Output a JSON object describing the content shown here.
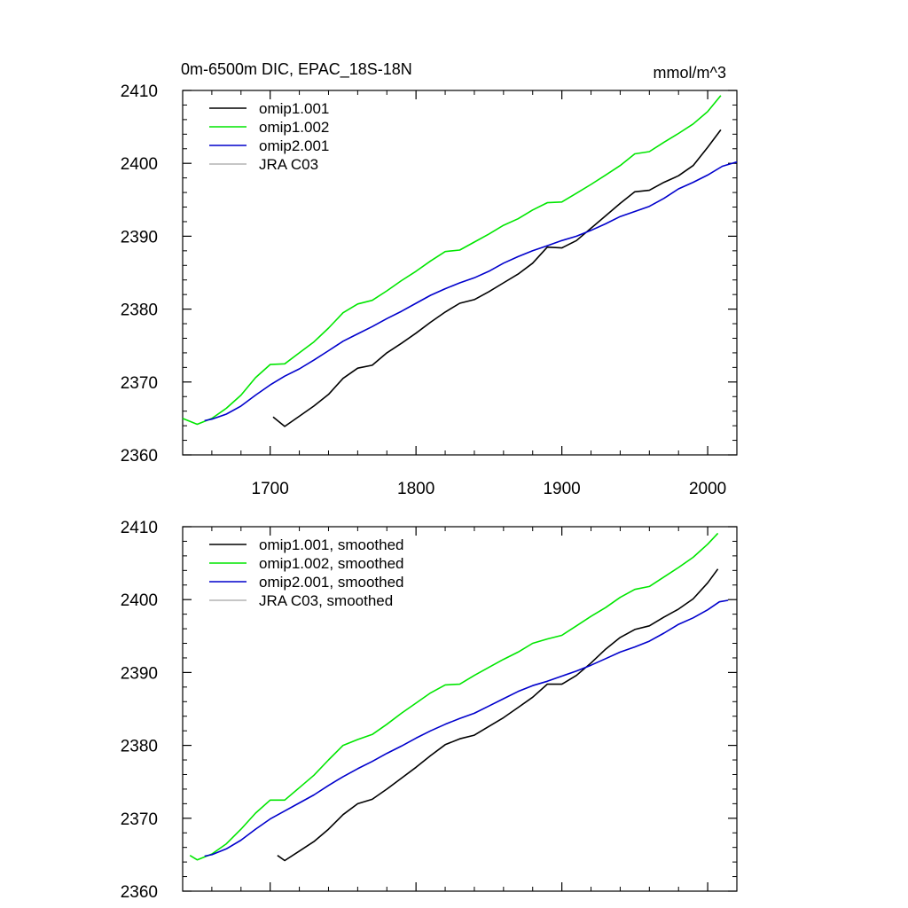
{
  "colors": {
    "omip1_001": "#000000",
    "omip1_002": "#00e600",
    "omip2_001": "#0000cc",
    "jra_c03": "#b3b3b3",
    "frame": "#000000"
  },
  "chart_data": [
    {
      "type": "line",
      "title": "0m-6500m DIC, EPAC_18S-18N",
      "units": "mmol/m^3",
      "xlim": [
        1640,
        2020
      ],
      "ylim": [
        2360,
        2410
      ],
      "x_ticks": [
        1700,
        1800,
        1900,
        2000
      ],
      "x_tick_labels": [
        "1700",
        "1800",
        "1900",
        "2000"
      ],
      "y_ticks": [
        2360,
        2370,
        2380,
        2390,
        2400,
        2410
      ],
      "y_tick_labels": [
        "2360",
        "2370",
        "2380",
        "2390",
        "2400",
        "2410"
      ],
      "grid": false,
      "legend_position": "top-left",
      "series": [
        {
          "name": "omip1.001",
          "color_key": "omip1_001",
          "x": [
            1702,
            1710,
            1720,
            1730,
            1740,
            1750,
            1760,
            1770,
            1780,
            1790,
            1800,
            1810,
            1820,
            1830,
            1840,
            1850,
            1860,
            1870,
            1880,
            1890,
            1900,
            1910,
            1920,
            1930,
            1940,
            1950,
            1960,
            1970,
            1980,
            1990,
            2000,
            2009
          ],
          "y": [
            2365.2,
            2363.9,
            2365.3,
            2366.7,
            2368.3,
            2370.5,
            2371.9,
            2372.3,
            2374.0,
            2375.3,
            2376.7,
            2378.2,
            2379.6,
            2380.8,
            2381.3,
            2382.4,
            2383.6,
            2384.8,
            2386.3,
            2388.5,
            2388.4,
            2389.4,
            2391.1,
            2392.8,
            2394.5,
            2396.1,
            2396.3,
            2397.4,
            2398.3,
            2399.7,
            2402.2,
            2404.6
          ]
        },
        {
          "name": "omip1.002",
          "color_key": "omip1_002",
          "x": [
            1640,
            1650,
            1660,
            1670,
            1680,
            1690,
            1700,
            1710,
            1720,
            1730,
            1740,
            1750,
            1760,
            1770,
            1780,
            1790,
            1800,
            1810,
            1820,
            1830,
            1840,
            1850,
            1860,
            1870,
            1880,
            1890,
            1900,
            1910,
            1920,
            1930,
            1940,
            1950,
            1960,
            1970,
            1980,
            1990,
            2000,
            2009
          ],
          "y": [
            2365.0,
            2364.2,
            2365.0,
            2366.4,
            2368.2,
            2370.6,
            2372.4,
            2372.5,
            2374.0,
            2375.5,
            2377.4,
            2379.5,
            2380.7,
            2381.2,
            2382.5,
            2383.9,
            2385.2,
            2386.6,
            2387.9,
            2388.1,
            2389.2,
            2390.3,
            2391.5,
            2392.4,
            2393.6,
            2394.6,
            2394.7,
            2395.9,
            2397.1,
            2398.4,
            2399.7,
            2401.3,
            2401.6,
            2402.9,
            2404.1,
            2405.4,
            2407.1,
            2409.3
          ]
        },
        {
          "name": "omip2.001",
          "color_key": "omip2_001",
          "x": [
            1655,
            1660,
            1670,
            1680,
            1690,
            1700,
            1710,
            1720,
            1730,
            1740,
            1750,
            1760,
            1770,
            1780,
            1790,
            1800,
            1810,
            1820,
            1830,
            1840,
            1850,
            1860,
            1870,
            1880,
            1890,
            1900,
            1910,
            1920,
            1930,
            1940,
            1950,
            1960,
            1970,
            1980,
            1990,
            2000,
            2010,
            2020
          ],
          "y": [
            2364.7,
            2364.9,
            2365.6,
            2366.7,
            2368.2,
            2369.6,
            2370.8,
            2371.8,
            2373.0,
            2374.3,
            2375.6,
            2376.6,
            2377.6,
            2378.7,
            2379.7,
            2380.8,
            2381.9,
            2382.8,
            2383.6,
            2384.3,
            2385.2,
            2386.3,
            2387.2,
            2388.0,
            2388.7,
            2389.4,
            2390.0,
            2390.8,
            2391.7,
            2392.7,
            2393.4,
            2394.1,
            2395.2,
            2396.5,
            2397.4,
            2398.4,
            2399.6,
            2400.2
          ]
        },
        {
          "name": "JRA C03",
          "color_key": "jra_c03",
          "x": [],
          "y": []
        }
      ]
    },
    {
      "type": "line",
      "title": "",
      "xlim": [
        1640,
        2020
      ],
      "ylim": [
        2360,
        2410
      ],
      "x_ticks": [
        1700,
        1800,
        1900,
        2000
      ],
      "x_tick_labels": [],
      "y_ticks": [
        2360,
        2370,
        2380,
        2390,
        2400,
        2410
      ],
      "y_tick_labels": [
        "2360",
        "2370",
        "2380",
        "2390",
        "2400",
        "2410"
      ],
      "grid": false,
      "legend_position": "top-left",
      "series": [
        {
          "name": "omip1.001, smoothed",
          "color_key": "omip1_001",
          "x": [
            1705,
            1710,
            1720,
            1730,
            1740,
            1750,
            1760,
            1770,
            1780,
            1790,
            1800,
            1810,
            1820,
            1830,
            1840,
            1850,
            1860,
            1870,
            1880,
            1890,
            1900,
            1910,
            1920,
            1930,
            1940,
            1950,
            1960,
            1970,
            1980,
            1990,
            2000,
            2007
          ],
          "y": [
            2364.9,
            2364.2,
            2365.5,
            2366.8,
            2368.5,
            2370.5,
            2372.0,
            2372.6,
            2374.0,
            2375.5,
            2377.0,
            2378.6,
            2380.1,
            2380.9,
            2381.4,
            2382.6,
            2383.8,
            2385.2,
            2386.6,
            2388.4,
            2388.4,
            2389.6,
            2391.3,
            2393.2,
            2394.8,
            2395.9,
            2396.4,
            2397.6,
            2398.7,
            2400.1,
            2402.3,
            2404.2
          ]
        },
        {
          "name": "omip1.002, smoothed",
          "color_key": "omip1_002",
          "x": [
            1645,
            1650,
            1660,
            1670,
            1680,
            1690,
            1700,
            1710,
            1720,
            1730,
            1740,
            1750,
            1760,
            1770,
            1780,
            1790,
            1800,
            1810,
            1820,
            1830,
            1840,
            1850,
            1860,
            1870,
            1880,
            1890,
            1900,
            1910,
            1920,
            1930,
            1940,
            1950,
            1960,
            1970,
            1980,
            1990,
            2000,
            2007
          ],
          "y": [
            2364.9,
            2364.3,
            2365.1,
            2366.5,
            2368.5,
            2370.7,
            2372.5,
            2372.5,
            2374.2,
            2375.9,
            2378.0,
            2380.0,
            2380.8,
            2381.5,
            2382.9,
            2384.4,
            2385.8,
            2387.2,
            2388.3,
            2388.4,
            2389.6,
            2390.7,
            2391.8,
            2392.8,
            2394.0,
            2394.6,
            2395.1,
            2396.4,
            2397.7,
            2398.9,
            2400.3,
            2401.4,
            2401.8,
            2403.1,
            2404.4,
            2405.8,
            2407.6,
            2409.1
          ]
        },
        {
          "name": "omip2.001, smoothed",
          "color_key": "omip2_001",
          "x": [
            1655,
            1660,
            1670,
            1680,
            1690,
            1700,
            1710,
            1720,
            1730,
            1740,
            1750,
            1760,
            1770,
            1780,
            1790,
            1800,
            1810,
            1820,
            1830,
            1840,
            1850,
            1860,
            1870,
            1880,
            1890,
            1900,
            1910,
            1920,
            1930,
            1940,
            1950,
            1960,
            1970,
            1980,
            1990,
            2000,
            2008,
            2014
          ],
          "y": [
            2364.8,
            2365.0,
            2365.8,
            2367.0,
            2368.5,
            2369.9,
            2371.0,
            2372.1,
            2373.2,
            2374.5,
            2375.7,
            2376.8,
            2377.8,
            2378.9,
            2379.9,
            2381.0,
            2382.0,
            2382.9,
            2383.7,
            2384.4,
            2385.4,
            2386.4,
            2387.4,
            2388.2,
            2388.8,
            2389.5,
            2390.2,
            2391.0,
            2391.9,
            2392.8,
            2393.5,
            2394.3,
            2395.4,
            2396.6,
            2397.5,
            2398.6,
            2399.7,
            2399.9
          ]
        },
        {
          "name": "JRA C03, smoothed",
          "color_key": "jra_c03",
          "x": [],
          "y": []
        }
      ]
    }
  ]
}
